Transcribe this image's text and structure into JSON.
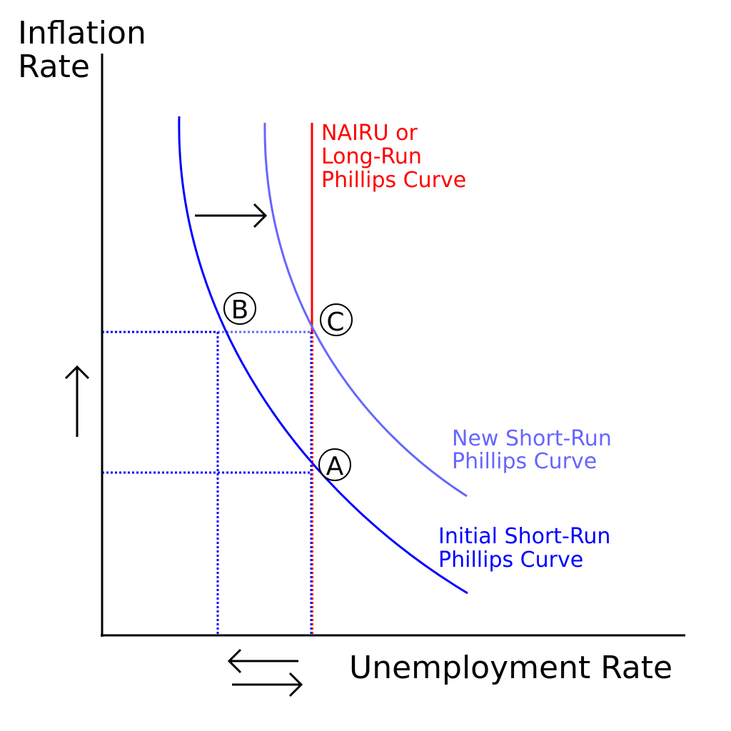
{
  "axes": {
    "y_label_line1": "Inflation",
    "y_label_line2": "Rate",
    "x_label": "Unemployment Rate"
  },
  "curves": {
    "lrpc": {
      "line1": "NAIRU or",
      "line2": "Long-Run",
      "line3": "Phillips Curve",
      "color": "#ff0000"
    },
    "new_srpc": {
      "line1": "New Short-Run",
      "line2": "Phillips Curve",
      "color": "#6666ff"
    },
    "initial_srpc": {
      "line1": "Initial Short-Run",
      "line2": "Phillips Curve",
      "color": "#0000ff"
    }
  },
  "points": {
    "a": "A",
    "b": "B",
    "c": "C"
  }
}
